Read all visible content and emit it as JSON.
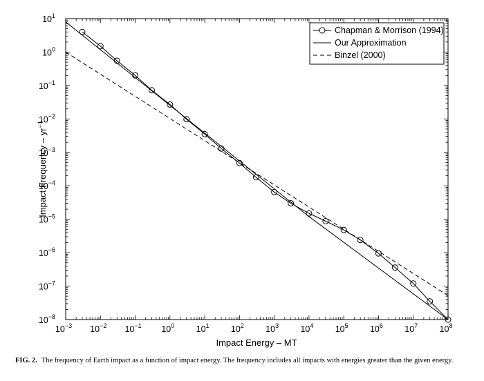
{
  "chart_data": {
    "type": "line",
    "xscale": "log",
    "yscale": "log",
    "xlim": [
      0.001,
      100000000
    ],
    "ylim": [
      1e-08,
      10
    ],
    "xlabel": "Impact Energy – MT",
    "ylabel": "Impact Frequency – yr",
    "ylabel_superscript": "−1",
    "x_ticks": [
      {
        "base": "10",
        "exp": "−3"
      },
      {
        "base": "10",
        "exp": "−2"
      },
      {
        "base": "10",
        "exp": "−1"
      },
      {
        "base": "10",
        "exp": "0"
      },
      {
        "base": "10",
        "exp": "1"
      },
      {
        "base": "10",
        "exp": "2"
      },
      {
        "base": "10",
        "exp": "3"
      },
      {
        "base": "10",
        "exp": "4"
      },
      {
        "base": "10",
        "exp": "5"
      },
      {
        "base": "10",
        "exp": "6"
      },
      {
        "base": "10",
        "exp": "7"
      },
      {
        "base": "10",
        "exp": "8"
      }
    ],
    "y_ticks": [
      {
        "base": "10",
        "exp": "−8"
      },
      {
        "base": "10",
        "exp": "−7"
      },
      {
        "base": "10",
        "exp": "−6"
      },
      {
        "base": "10",
        "exp": "−5"
      },
      {
        "base": "10",
        "exp": "−4"
      },
      {
        "base": "10",
        "exp": "−3"
      },
      {
        "base": "10",
        "exp": "−2"
      },
      {
        "base": "10",
        "exp": "−1"
      },
      {
        "base": "10",
        "exp": "0"
      },
      {
        "base": "10",
        "exp": "1"
      }
    ],
    "grid": false,
    "legend_position": "top-right",
    "series": [
      {
        "name": "Chapman & Morrison (1994)",
        "style": "solid-circles",
        "x": [
          0.003,
          0.01,
          0.03,
          0.1,
          0.3,
          1,
          3,
          10,
          30,
          100,
          300,
          1000,
          3000,
          10000,
          30000,
          100000,
          300000,
          1000000,
          3000000,
          10000000,
          30000000,
          100000000
        ],
        "y": [
          4,
          1.5,
          0.55,
          0.2,
          0.072,
          0.027,
          0.0098,
          0.0035,
          0.0013,
          0.00048,
          0.00018,
          6.5e-05,
          3e-05,
          1.5e-05,
          8.8e-06,
          4.8e-06,
          2.4e-06,
          9.5e-07,
          3.6e-07,
          1.2e-07,
          3.5e-08,
          1e-08
        ]
      },
      {
        "name": "Our Approximation",
        "style": "solid",
        "x": [
          0.001,
          10000,
          100000000
        ],
        "y": [
          8,
          1.2e-05,
          1e-08
        ]
      },
      {
        "name": "Binzel (2000)",
        "style": "dashed",
        "x": [
          0.001,
          100000000
        ],
        "y": [
          1,
          5.2e-08
        ]
      }
    ]
  },
  "caption": {
    "label": "FIG. 2.",
    "text": "The frequency of Earth impact as a function of impact energy. The frequency includes all impacts with energies greater than the given energy."
  }
}
